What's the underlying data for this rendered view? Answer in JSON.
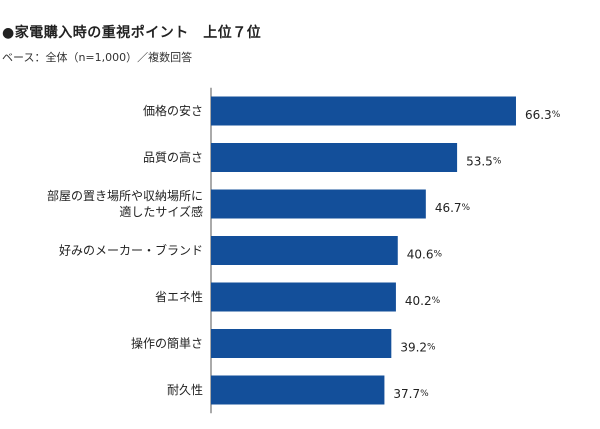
{
  "chart_data": {
    "type": "bar",
    "orientation": "horizontal",
    "title": "●家電購入時の重視ポイント　上位７位",
    "subtitle": "ベース：全体（n=1,000）／複数回答",
    "categories": [
      [
        "価格の安さ"
      ],
      [
        "品質の高さ"
      ],
      [
        "部屋の置き場所や収納場所に",
        "適したサイズ感"
      ],
      [
        "好みのメーカー・ブランド"
      ],
      [
        "省エネ性"
      ],
      [
        "操作の簡単さ"
      ],
      [
        "耐久性"
      ]
    ],
    "values": [
      66.3,
      53.5,
      46.7,
      40.6,
      40.2,
      39.2,
      37.7
    ],
    "value_labels": [
      "66.3",
      "53.5",
      "46.7",
      "40.6",
      "40.2",
      "39.2",
      "37.7"
    ],
    "unit": "%",
    "xlim": [
      0,
      100
    ],
    "bar_color": "#134f9a",
    "axis_color": "#555555"
  }
}
